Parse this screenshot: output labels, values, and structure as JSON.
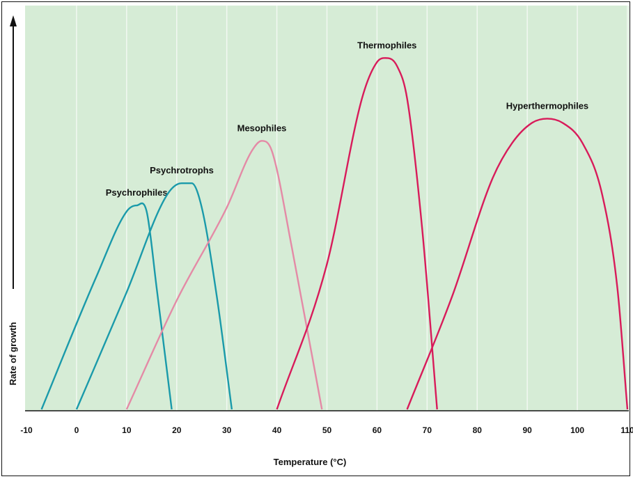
{
  "chart_data": {
    "type": "line",
    "title": "",
    "xlabel": "Temperature (°C)",
    "ylabel": "Rate of growth",
    "xlim": [
      -10,
      110
    ],
    "ylim": [
      0,
      1
    ],
    "x_ticks": [
      "-10",
      "0",
      "10",
      "20",
      "30",
      "40",
      "50",
      "60",
      "70",
      "80",
      "90",
      "100",
      "110"
    ],
    "grid": true,
    "legend": "none",
    "colors": {
      "background": "#d6ecd6",
      "grid": "#f2f8f2",
      "axis": "#111111",
      "psychro": "#1a9aaa",
      "meso": "#e48aa6",
      "thermo": "#d81b5a"
    },
    "series": [
      {
        "name": "Psychrophiles",
        "color": "#1a9aaa",
        "points": [
          [
            -7,
            0
          ],
          [
            4,
            0.33
          ],
          [
            10,
            0.49
          ],
          [
            12,
            0.505
          ],
          [
            14,
            0.49
          ],
          [
            16,
            0.3
          ],
          [
            19,
            0
          ]
        ]
      },
      {
        "name": "Psychrotrophs",
        "color": "#1a9aaa",
        "points": [
          [
            0,
            0
          ],
          [
            10,
            0.29
          ],
          [
            18,
            0.53
          ],
          [
            21,
            0.56
          ],
          [
            23,
            0.56
          ],
          [
            25,
            0.5
          ],
          [
            28,
            0.28
          ],
          [
            31,
            0
          ]
        ]
      },
      {
        "name": "Mesophiles",
        "color": "#e48aa6",
        "points": [
          [
            10,
            0
          ],
          [
            20,
            0.27
          ],
          [
            30,
            0.5
          ],
          [
            35,
            0.64
          ],
          [
            37,
            0.665
          ],
          [
            39,
            0.64
          ],
          [
            43,
            0.4
          ],
          [
            49,
            0
          ]
        ]
      },
      {
        "name": "Thermophiles",
        "color": "#d81b5a",
        "points": [
          [
            40,
            0
          ],
          [
            50,
            0.36
          ],
          [
            57,
            0.77
          ],
          [
            60,
            0.86
          ],
          [
            62,
            0.87
          ],
          [
            64,
            0.85
          ],
          [
            66,
            0.77
          ],
          [
            69,
            0.45
          ],
          [
            72,
            0
          ]
        ]
      },
      {
        "name": "Hyperthermophiles",
        "color": "#d81b5a",
        "points": [
          [
            66,
            0
          ],
          [
            75,
            0.28
          ],
          [
            83,
            0.57
          ],
          [
            87,
            0.66
          ],
          [
            91,
            0.71
          ],
          [
            94,
            0.72
          ],
          [
            97,
            0.71
          ],
          [
            101,
            0.66
          ],
          [
            105,
            0.53
          ],
          [
            108,
            0.3
          ],
          [
            110,
            0
          ]
        ]
      }
    ]
  }
}
